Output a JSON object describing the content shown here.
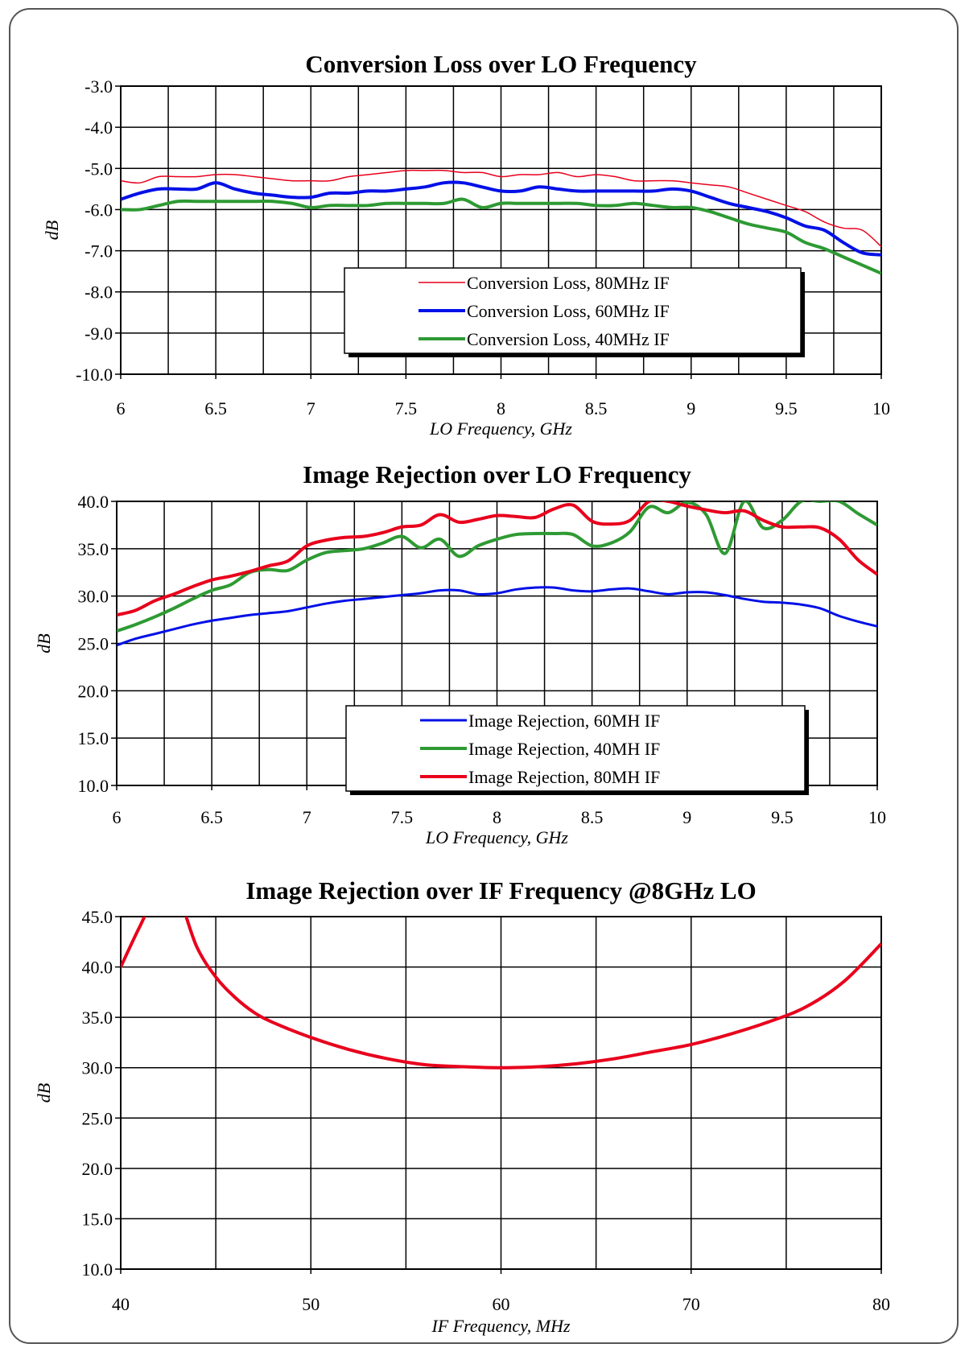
{
  "chart_data": [
    {
      "type": "line",
      "title": "Conversion Loss over LO Frequency",
      "xlabel": "LO Frequency, GHz",
      "ylabel": "dB",
      "xlim": [
        6,
        10
      ],
      "ylim": [
        -10,
        -3
      ],
      "xticks": [
        "6",
        "6.5",
        "7",
        "7.5",
        "8",
        "8.5",
        "9",
        "9.5",
        "10"
      ],
      "yticks": [
        "-3.0",
        "-4.0",
        "-5.0",
        "-6.0",
        "-7.0",
        "-8.0",
        "-9.0",
        "-10.0"
      ],
      "grid": true,
      "legend_position": "lower-right",
      "x": [
        6.0,
        6.1,
        6.2,
        6.3,
        6.4,
        6.5,
        6.6,
        6.7,
        6.8,
        6.9,
        7.0,
        7.1,
        7.2,
        7.3,
        7.4,
        7.5,
        7.6,
        7.7,
        7.8,
        7.9,
        8.0,
        8.1,
        8.2,
        8.3,
        8.4,
        8.5,
        8.6,
        8.7,
        8.8,
        8.9,
        9.0,
        9.1,
        9.2,
        9.3,
        9.4,
        9.5,
        9.6,
        9.7,
        9.8,
        9.9,
        10.0
      ],
      "series": [
        {
          "name": "Conversion Loss, 80MHz IF",
          "color": "#e8001c",
          "width": 1.5,
          "values": [
            -5.3,
            -5.35,
            -5.2,
            -5.2,
            -5.2,
            -5.15,
            -5.15,
            -5.2,
            -5.25,
            -5.3,
            -5.3,
            -5.3,
            -5.2,
            -5.15,
            -5.1,
            -5.05,
            -5.05,
            -5.05,
            -5.1,
            -5.1,
            -5.2,
            -5.15,
            -5.15,
            -5.1,
            -5.2,
            -5.15,
            -5.2,
            -5.3,
            -5.3,
            -5.3,
            -5.35,
            -5.4,
            -5.45,
            -5.6,
            -5.75,
            -5.9,
            -6.05,
            -6.3,
            -6.45,
            -6.5,
            -6.9
          ]
        },
        {
          "name": "Conversion Loss, 60MHz IF",
          "color": "#0010e6",
          "width": 4,
          "values": [
            -5.75,
            -5.6,
            -5.5,
            -5.5,
            -5.5,
            -5.35,
            -5.5,
            -5.6,
            -5.65,
            -5.7,
            -5.7,
            -5.6,
            -5.6,
            -5.55,
            -5.55,
            -5.5,
            -5.45,
            -5.35,
            -5.35,
            -5.45,
            -5.55,
            -5.55,
            -5.45,
            -5.5,
            -5.55,
            -5.55,
            -5.55,
            -5.55,
            -5.55,
            -5.5,
            -5.55,
            -5.7,
            -5.85,
            -5.95,
            -6.05,
            -6.2,
            -6.4,
            -6.5,
            -6.8,
            -7.05,
            -7.1
          ]
        },
        {
          "name": "Conversion Loss, 40MHz IF",
          "color": "#2e9a33",
          "width": 4,
          "values": [
            -6.0,
            -6.0,
            -5.9,
            -5.8,
            -5.8,
            -5.8,
            -5.8,
            -5.8,
            -5.8,
            -5.85,
            -5.95,
            -5.9,
            -5.9,
            -5.9,
            -5.85,
            -5.85,
            -5.85,
            -5.85,
            -5.75,
            -5.95,
            -5.85,
            -5.85,
            -5.85,
            -5.85,
            -5.85,
            -5.9,
            -5.9,
            -5.85,
            -5.9,
            -5.95,
            -5.95,
            -6.05,
            -6.2,
            -6.35,
            -6.45,
            -6.55,
            -6.8,
            -6.95,
            -7.15,
            -7.35,
            -7.55
          ]
        }
      ]
    },
    {
      "type": "line",
      "title": "Image Rejection over LO Frequency",
      "xlabel": "LO Frequency, GHz",
      "ylabel": "dB",
      "xlim": [
        6,
        10
      ],
      "ylim": [
        10,
        40
      ],
      "xticks": [
        "6",
        "6.5",
        "7",
        "7.5",
        "8",
        "8.5",
        "9",
        "9.5",
        "10"
      ],
      "yticks": [
        "40.0",
        "35.0",
        "30.0",
        "25.0",
        "20.0",
        "15.0",
        "10.0"
      ],
      "grid": true,
      "legend_position": "lower-right",
      "x": [
        6.0,
        6.1,
        6.2,
        6.3,
        6.4,
        6.5,
        6.6,
        6.7,
        6.8,
        6.9,
        7.0,
        7.1,
        7.2,
        7.3,
        7.4,
        7.5,
        7.6,
        7.7,
        7.8,
        7.9,
        8.0,
        8.1,
        8.2,
        8.3,
        8.4,
        8.5,
        8.6,
        8.7,
        8.8,
        8.9,
        9.0,
        9.1,
        9.2,
        9.3,
        9.4,
        9.5,
        9.6,
        9.7,
        9.8,
        9.9,
        10.0
      ],
      "series": [
        {
          "name": "Image Rejection, 60MH IF",
          "color": "#0010e6",
          "width": 3,
          "values": [
            24.8,
            25.5,
            26.0,
            26.5,
            27.0,
            27.4,
            27.7,
            28.0,
            28.2,
            28.4,
            28.8,
            29.2,
            29.5,
            29.7,
            29.9,
            30.1,
            30.3,
            30.6,
            30.6,
            30.2,
            30.3,
            30.7,
            30.9,
            30.9,
            30.6,
            30.5,
            30.7,
            30.8,
            30.5,
            30.2,
            30.4,
            30.4,
            30.1,
            29.7,
            29.4,
            29.3,
            29.1,
            28.7,
            27.9,
            27.3,
            26.8
          ]
        },
        {
          "name": "Image Rejection, 40MH IF",
          "color": "#2e9a33",
          "width": 4,
          "values": [
            26.3,
            27.0,
            27.8,
            28.7,
            29.7,
            30.6,
            31.2,
            32.5,
            32.8,
            32.7,
            33.8,
            34.6,
            34.8,
            35.0,
            35.6,
            36.3,
            35.1,
            36.0,
            34.2,
            35.3,
            36.0,
            36.5,
            36.6,
            36.6,
            36.5,
            35.3,
            35.6,
            36.8,
            39.4,
            38.8,
            39.9,
            38.6,
            34.5,
            40.0,
            37.2,
            38.0,
            40.0,
            40.0,
            40.0,
            38.7,
            37.5
          ]
        },
        {
          "name": "Image Rejection, 80MH IF",
          "color": "#e8001c",
          "width": 4,
          "values": [
            28.0,
            28.5,
            29.5,
            30.2,
            31.0,
            31.7,
            32.1,
            32.6,
            33.2,
            33.7,
            35.3,
            35.9,
            36.2,
            36.3,
            36.7,
            37.3,
            37.5,
            38.6,
            37.8,
            38.1,
            38.5,
            38.4,
            38.3,
            39.2,
            39.6,
            37.9,
            37.6,
            38.0,
            40.0,
            40.0,
            39.5,
            39.1,
            38.8,
            39.0,
            38.0,
            37.3,
            37.3,
            37.2,
            36.0,
            33.8,
            32.3
          ]
        }
      ]
    },
    {
      "type": "line",
      "title": "Image Rejection over IF Frequency @8GHz LO",
      "xlabel": "IF Frequency, MHz",
      "ylabel": "dB",
      "xlim": [
        40,
        80
      ],
      "ylim": [
        10,
        45
      ],
      "xticks": [
        "40",
        "50",
        "60",
        "70",
        "80"
      ],
      "yticks": [
        "45.0",
        "40.0",
        "35.0",
        "30.0",
        "25.0",
        "20.0",
        "15.0",
        "10.0"
      ],
      "grid": true,
      "x": [
        40,
        41,
        42,
        43,
        44,
        45,
        46,
        47,
        48,
        50,
        52,
        54,
        56,
        58,
        60,
        62,
        64,
        66,
        68,
        70,
        72,
        74,
        76,
        78,
        80
      ],
      "series": [
        {
          "name": "",
          "color": "#e8001c",
          "width": 4,
          "values": [
            40.0,
            44.0,
            47.5,
            47.0,
            42.0,
            39.0,
            37.0,
            35.5,
            34.5,
            33.0,
            31.8,
            30.9,
            30.3,
            30.1,
            30.0,
            30.1,
            30.4,
            30.9,
            31.6,
            32.3,
            33.3,
            34.5,
            36.0,
            38.5,
            42.3
          ]
        }
      ]
    }
  ]
}
